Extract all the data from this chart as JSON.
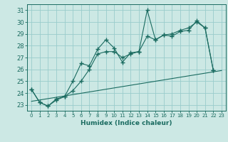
{
  "xlabel": "Humidex (Indice chaleur)",
  "background_color": "#cce8e4",
  "grid_color": "#99cccc",
  "line_color": "#1a6b60",
  "xlim": [
    -0.5,
    23.5
  ],
  "ylim": [
    22.5,
    31.5
  ],
  "xticks": [
    0,
    1,
    2,
    3,
    4,
    5,
    6,
    7,
    8,
    9,
    10,
    11,
    12,
    13,
    14,
    15,
    16,
    17,
    18,
    19,
    20,
    21,
    22,
    23
  ],
  "yticks": [
    23,
    24,
    25,
    26,
    27,
    28,
    29,
    30,
    31
  ],
  "series1": [
    24.3,
    23.2,
    22.9,
    23.4,
    23.7,
    25.0,
    26.5,
    26.3,
    27.7,
    28.5,
    27.8,
    26.6,
    27.4,
    27.5,
    31.0,
    28.5,
    28.9,
    28.8,
    29.2,
    29.3,
    30.1,
    29.5,
    25.9,
    null
  ],
  "series2": [
    24.3,
    23.2,
    22.9,
    23.5,
    23.7,
    24.2,
    25.0,
    26.0,
    27.3,
    27.5,
    27.5,
    27.0,
    27.3,
    27.5,
    28.8,
    28.5,
    28.9,
    29.0,
    29.3,
    29.5,
    30.0,
    29.5,
    25.9,
    null
  ],
  "series3_x": [
    0,
    23
  ],
  "series3_y": [
    23.3,
    25.9
  ]
}
